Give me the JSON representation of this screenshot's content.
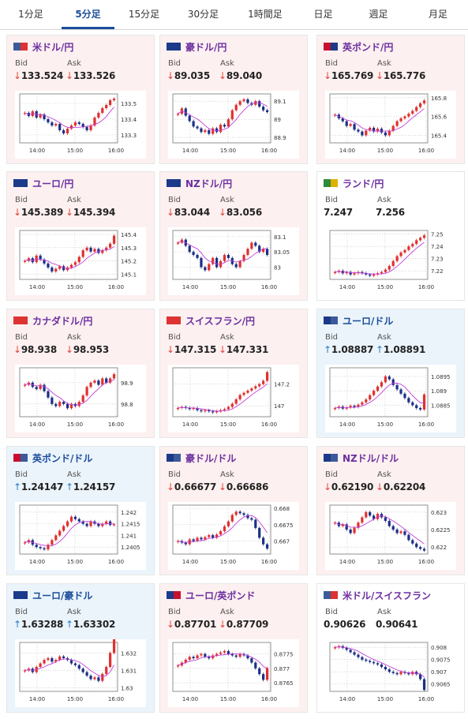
{
  "tabs": [
    "1分足",
    "5分足",
    "15分足",
    "30分足",
    "1時間足",
    "日足",
    "週足",
    "月足"
  ],
  "active_tab": 1,
  "labels": {
    "bid": "Bid",
    "ask": "Ask"
  },
  "colors": {
    "down_bg": "#fdf0f0",
    "up_bg": "#ebf4fb",
    "down_arrow": "#e0453a",
    "up_arrow": "#2a7cc7",
    "bull_candle": "#e03030",
    "bear_candle": "#1c2f86",
    "ma_line": "#c040d8"
  },
  "cards": [
    {
      "pair": "米ドル/円",
      "flag": [
        "#3c5a9a",
        "#d33"
      ],
      "state": "down",
      "bid_arrow": "↓",
      "ask_arrow": "↓",
      "bid": "133.524",
      "ask": "133.526",
      "chart_data": {
        "type": "candlestick",
        "x_ticks": [
          "14:00",
          "15:00",
          "16:00"
        ],
        "y_ticks": [
          "133.5",
          "133.4",
          "133.3"
        ],
        "ylim": [
          133.25,
          133.56
        ],
        "closes": [
          133.44,
          133.42,
          133.45,
          133.41,
          133.43,
          133.4,
          133.38,
          133.36,
          133.37,
          133.33,
          133.31,
          133.34,
          133.36,
          133.38,
          133.37,
          133.35,
          133.33,
          133.36,
          133.41,
          133.44,
          133.47,
          133.49,
          133.52,
          133.53
        ]
      }
    },
    {
      "pair": "豪ドル/円",
      "flag": [
        "#1b3a8a",
        "#1b3a8a"
      ],
      "state": "down",
      "bid_arrow": "↓",
      "ask_arrow": "↓",
      "bid": "89.035",
      "ask": "89.040",
      "chart_data": {
        "type": "candlestick",
        "x_ticks": [
          "14:00",
          "15:00",
          "16:00"
        ],
        "y_ticks": [
          "89.1",
          "89",
          "88.9"
        ],
        "ylim": [
          88.87,
          89.14
        ],
        "closes": [
          89.03,
          89.06,
          89.02,
          88.99,
          88.96,
          88.95,
          88.93,
          88.94,
          88.92,
          88.95,
          88.93,
          88.97,
          88.96,
          89.0,
          89.05,
          89.08,
          89.1,
          89.11,
          89.09,
          89.08,
          89.1,
          89.07,
          89.05,
          89.04
        ]
      }
    },
    {
      "pair": "英ポンド/円",
      "flag": [
        "#c8102e",
        "#1b3a8a"
      ],
      "state": "down",
      "bid_arrow": "↓",
      "ask_arrow": "↓",
      "bid": "165.769",
      "ask": "165.776",
      "chart_data": {
        "type": "candlestick",
        "x_ticks": [
          "14:00",
          "15:00",
          "16:00"
        ],
        "y_ticks": [
          "165.8",
          "165.6",
          "165.4"
        ],
        "ylim": [
          165.32,
          165.84
        ],
        "closes": [
          165.62,
          165.58,
          165.55,
          165.5,
          165.52,
          165.46,
          165.44,
          165.4,
          165.45,
          165.48,
          165.44,
          165.47,
          165.43,
          165.4,
          165.45,
          165.5,
          165.55,
          165.58,
          165.6,
          165.63,
          165.66,
          165.7,
          165.74,
          165.77
        ]
      }
    },
    {
      "pair": "ユーロ/円",
      "flag": [
        "#1b3a8a",
        "#1b3a8a"
      ],
      "state": "down",
      "bid_arrow": "↓",
      "ask_arrow": "↓",
      "bid": "145.389",
      "ask": "145.394",
      "chart_data": {
        "type": "candlestick",
        "x_ticks": [
          "14:00",
          "15:00",
          "16:00"
        ],
        "y_ticks": [
          "145.4",
          "145.3",
          "145.2",
          "145.1"
        ],
        "ylim": [
          145.06,
          145.43
        ],
        "closes": [
          145.2,
          145.22,
          145.19,
          145.24,
          145.21,
          145.18,
          145.15,
          145.12,
          145.14,
          145.16,
          145.13,
          145.15,
          145.17,
          145.19,
          145.23,
          145.28,
          145.3,
          145.27,
          145.29,
          145.26,
          145.28,
          145.3,
          145.33,
          145.39
        ]
      }
    },
    {
      "pair": "NZドル/円",
      "flag": [
        "#1b3a8a",
        "#1b3a8a"
      ],
      "state": "down",
      "bid_arrow": "↓",
      "ask_arrow": "↓",
      "bid": "83.044",
      "ask": "83.056",
      "chart_data": {
        "type": "candlestick",
        "x_ticks": [
          "14:00",
          "15:00",
          "16:00"
        ],
        "y_ticks": [
          "83.1",
          "83.05",
          "83"
        ],
        "ylim": [
          82.96,
          83.12
        ],
        "closes": [
          83.08,
          83.09,
          83.07,
          83.05,
          83.04,
          83.03,
          83.0,
          82.99,
          83.01,
          83.03,
          83.0,
          83.02,
          83.04,
          83.03,
          83.01,
          83.0,
          83.02,
          83.04,
          83.06,
          83.08,
          83.07,
          83.05,
          83.06,
          83.04
        ]
      }
    },
    {
      "pair": "ランド/円",
      "flag": [
        "#2e8b3a",
        "#e0b000"
      ],
      "state": "neutral",
      "bid_arrow": "",
      "ask_arrow": "",
      "bid": "7.247",
      "ask": "7.256",
      "chart_data": {
        "type": "candlestick",
        "x_ticks": [
          "14:00",
          "15:00",
          "16:00"
        ],
        "y_ticks": [
          "7.25",
          "7.24",
          "7.23",
          "7.22"
        ],
        "ylim": [
          7.213,
          7.253
        ],
        "closes": [
          7.219,
          7.22,
          7.218,
          7.219,
          7.217,
          7.218,
          7.219,
          7.218,
          7.217,
          7.216,
          7.217,
          7.218,
          7.219,
          7.221,
          7.224,
          7.228,
          7.232,
          7.235,
          7.237,
          7.24,
          7.242,
          7.245,
          7.247,
          7.249
        ]
      }
    },
    {
      "pair": "カナダドル/円",
      "flag": [
        "#d33",
        "#d33"
      ],
      "state": "down",
      "bid_arrow": "↓",
      "ask_arrow": "↓",
      "bid": "98.938",
      "ask": "98.953",
      "chart_data": {
        "type": "candlestick",
        "x_ticks": [
          "14:00",
          "15:00",
          "16:00"
        ],
        "y_ticks": [
          "98.9",
          "98.8"
        ],
        "ylim": [
          98.74,
          98.97
        ],
        "closes": [
          98.89,
          98.9,
          98.88,
          98.87,
          98.89,
          98.86,
          98.83,
          98.8,
          98.79,
          98.81,
          98.8,
          98.78,
          98.8,
          98.79,
          98.81,
          98.84,
          98.88,
          98.9,
          98.91,
          98.89,
          98.92,
          98.9,
          98.92,
          98.94
        ]
      }
    },
    {
      "pair": "スイスフラン/円",
      "flag": [
        "#d33",
        "#d33"
      ],
      "state": "down",
      "bid_arrow": "↓",
      "ask_arrow": "↓",
      "bid": "147.315",
      "ask": "147.331",
      "chart_data": {
        "type": "candlestick",
        "x_ticks": [
          "14:00",
          "15:00",
          "16:00"
        ],
        "y_ticks": [
          "147.2",
          "147"
        ],
        "ylim": [
          146.9,
          147.35
        ],
        "closes": [
          146.98,
          146.99,
          146.98,
          146.97,
          146.98,
          146.96,
          146.95,
          146.96,
          146.95,
          146.94,
          146.95,
          146.96,
          146.97,
          146.99,
          147.02,
          147.06,
          147.1,
          147.12,
          147.14,
          147.16,
          147.18,
          147.2,
          147.23,
          147.31
        ]
      }
    },
    {
      "pair": "ユーロ/ドル",
      "flag": [
        "#1b3a8a",
        "#3c5a9a"
      ],
      "state": "up",
      "bid_arrow": "↑",
      "ask_arrow": "↑",
      "bid": "1.08887",
      "ask": "1.08891",
      "chart_data": {
        "type": "candlestick",
        "x_ticks": [
          "14:00",
          "15:00",
          "16:00"
        ],
        "y_ticks": [
          "1.0895",
          "1.089",
          "1.0885"
        ],
        "ylim": [
          1.0881,
          1.0898
        ],
        "closes": [
          1.0884,
          1.08845,
          1.08838,
          1.08842,
          1.08848,
          1.08844,
          1.08852,
          1.0886,
          1.0887,
          1.08885,
          1.089,
          1.08915,
          1.0893,
          1.0895,
          1.0894,
          1.0892,
          1.08905,
          1.0889,
          1.08875,
          1.0886,
          1.0885,
          1.0884,
          1.08835,
          1.08887
        ]
      }
    },
    {
      "pair": "英ポンド/ドル",
      "flag": [
        "#c8102e",
        "#3c5a9a"
      ],
      "state": "up",
      "bid_arrow": "↑",
      "ask_arrow": "↑",
      "bid": "1.24147",
      "ask": "1.24157",
      "chart_data": {
        "type": "candlestick",
        "x_ticks": [
          "14:00",
          "15:00",
          "16:00"
        ],
        "y_ticks": [
          "1.242",
          "1.2415",
          "1.241",
          "1.2405"
        ],
        "ylim": [
          1.2402,
          1.2423
        ],
        "closes": [
          1.2407,
          1.2408,
          1.2406,
          1.2405,
          1.24045,
          1.2404,
          1.2406,
          1.2408,
          1.241,
          1.2412,
          1.2414,
          1.2416,
          1.2418,
          1.2417,
          1.2416,
          1.2415,
          1.2414,
          1.2416,
          1.2415,
          1.2414,
          1.2415,
          1.2416,
          1.24145,
          1.24147
        ]
      }
    },
    {
      "pair": "豪ドル/ドル",
      "flag": [
        "#1b3a8a",
        "#3c5a9a"
      ],
      "state": "down",
      "bid_arrow": "↓",
      "ask_arrow": "↓",
      "bid": "0.66677",
      "ask": "0.66686",
      "chart_data": {
        "type": "candlestick",
        "x_ticks": [
          "14:00",
          "15:00",
          "16:00"
        ],
        "y_ticks": [
          "0.668",
          "0.6675",
          "0.667"
        ],
        "ylim": [
          0.6666,
          0.6681
        ],
        "closes": [
          0.667,
          0.66695,
          0.6669,
          0.66705,
          0.667,
          0.6671,
          0.66705,
          0.66712,
          0.66718,
          0.6671,
          0.6672,
          0.6673,
          0.66745,
          0.6676,
          0.6678,
          0.6679,
          0.66785,
          0.6678,
          0.6677,
          0.66765,
          0.6674,
          0.6671,
          0.6669,
          0.66677
        ]
      }
    },
    {
      "pair": "NZドル/ドル",
      "flag": [
        "#1b3a8a",
        "#3c5a9a"
      ],
      "state": "down",
      "bid_arrow": "↓",
      "ask_arrow": "↓",
      "bid": "0.62190",
      "ask": "0.62204",
      "chart_data": {
        "type": "candlestick",
        "x_ticks": [
          "14:00",
          "15:00",
          "16:00"
        ],
        "y_ticks": [
          "0.623",
          "0.6225",
          "0.622"
        ],
        "ylim": [
          0.6218,
          0.6232
        ],
        "closes": [
          0.6227,
          0.6226,
          0.62265,
          0.6225,
          0.6224,
          0.62255,
          0.6227,
          0.62285,
          0.623,
          0.6229,
          0.6228,
          0.62295,
          0.62285,
          0.62275,
          0.6226,
          0.6225,
          0.6224,
          0.62245,
          0.62235,
          0.6222,
          0.6221,
          0.622,
          0.62195,
          0.6219
        ]
      }
    },
    {
      "pair": "ユーロ/豪ドル",
      "flag": [
        "#1b3a8a",
        "#1b3a8a"
      ],
      "state": "up",
      "bid_arrow": "↑",
      "ask_arrow": "↑",
      "bid": "1.63288",
      "ask": "1.63302",
      "chart_data": {
        "type": "candlestick",
        "x_ticks": [
          "14:00",
          "15:00",
          "16:00"
        ],
        "y_ticks": [
          "1.632",
          "1.631",
          "1.63"
        ],
        "ylim": [
          1.6298,
          1.6326
        ],
        "closes": [
          1.631,
          1.6311,
          1.6309,
          1.6312,
          1.6314,
          1.6316,
          1.6317,
          1.6315,
          1.6316,
          1.6318,
          1.6317,
          1.6316,
          1.6314,
          1.6313,
          1.6311,
          1.6309,
          1.6307,
          1.6305,
          1.6306,
          1.6304,
          1.6308,
          1.6312,
          1.632,
          1.63288
        ]
      }
    },
    {
      "pair": "ユーロ/英ポンド",
      "flag": [
        "#1b3a8a",
        "#c8102e"
      ],
      "state": "down",
      "bid_arrow": "↓",
      "ask_arrow": "↓",
      "bid": "0.87701",
      "ask": "0.87709",
      "chart_data": {
        "type": "candlestick",
        "x_ticks": [
          "14:00",
          "15:00",
          "16:00"
        ],
        "y_ticks": [
          "0.8775",
          "0.877",
          "0.8765"
        ],
        "ylim": [
          0.8762,
          0.8779
        ],
        "closes": [
          0.8771,
          0.8772,
          0.8773,
          0.8774,
          0.87735,
          0.87745,
          0.8775,
          0.8774,
          0.87735,
          0.87745,
          0.8775,
          0.87755,
          0.8776,
          0.8775,
          0.87745,
          0.8774,
          0.8775,
          0.87745,
          0.87735,
          0.8772,
          0.877,
          0.8768,
          0.8766,
          0.87701
        ]
      }
    },
    {
      "pair": "米ドル/スイスフラン",
      "flag": [
        "#3c5a9a",
        "#d33"
      ],
      "state": "neutral",
      "bid_arrow": "",
      "ask_arrow": "",
      "bid": "0.90626",
      "ask": "0.90641",
      "chart_data": {
        "type": "candlestick",
        "x_ticks": [
          "14:00",
          "15:00",
          "16:00"
        ],
        "y_ticks": [
          "0.908",
          "0.9075",
          "0.907",
          "0.9065"
        ],
        "ylim": [
          0.9062,
          0.9082
        ],
        "closes": [
          0.908,
          0.90805,
          0.90798,
          0.9079,
          0.9078,
          0.9077,
          0.9076,
          0.9075,
          0.90745,
          0.9074,
          0.90735,
          0.9073,
          0.9072,
          0.9071,
          0.907,
          0.90695,
          0.9069,
          0.907,
          0.90695,
          0.9069,
          0.907,
          0.9069,
          0.9067,
          0.90626
        ]
      }
    }
  ]
}
